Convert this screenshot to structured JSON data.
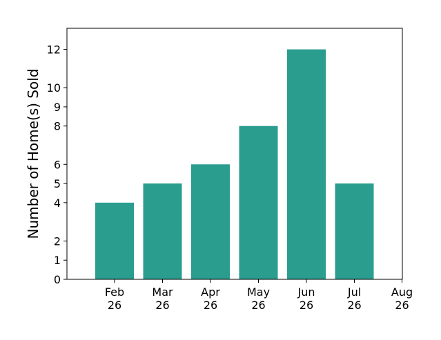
{
  "chart_data": {
    "type": "bar",
    "categories": [
      "Feb 26",
      "Mar 26",
      "Apr 26",
      "May 26",
      "Jun 26",
      "Jul 26"
    ],
    "values": [
      4,
      5,
      6,
      8,
      12,
      5
    ],
    "x_tick_labels": [
      [
        "Feb",
        "26"
      ],
      [
        "Mar",
        "26"
      ],
      [
        "Apr",
        "26"
      ],
      [
        "May",
        "26"
      ],
      [
        "Jun",
        "26"
      ],
      [
        "Jul",
        "26"
      ],
      [
        "Aug",
        "26"
      ]
    ],
    "y_ticks": [
      0,
      1,
      2,
      4,
      5,
      6,
      8,
      9,
      10,
      12
    ],
    "ylim": [
      0,
      13.1
    ],
    "ylabel": "Number of Home(s) Sold",
    "xlabel": "",
    "title": "",
    "bar_color": "#2a9d8f",
    "grid": false
  }
}
